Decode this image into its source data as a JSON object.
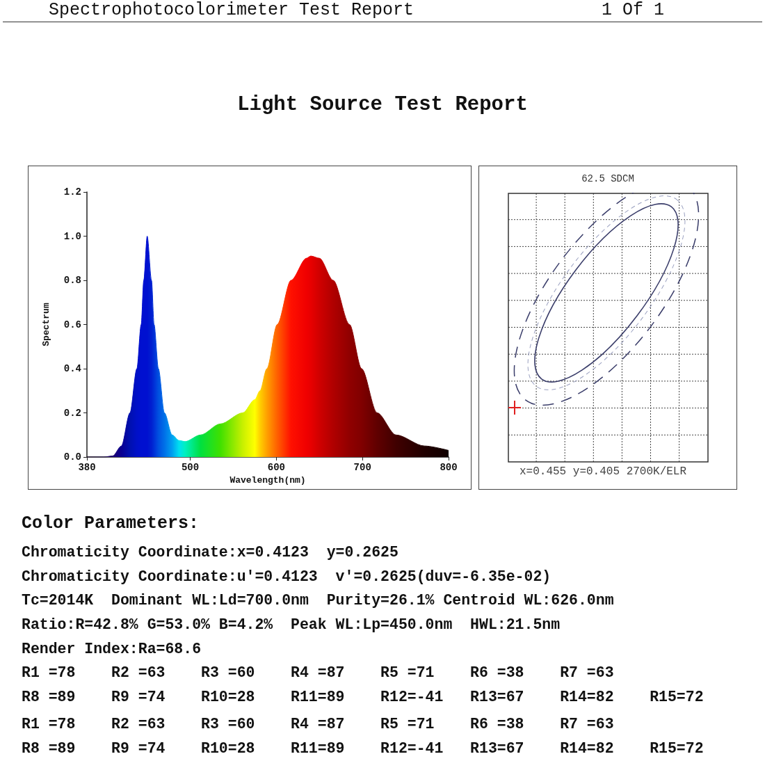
{
  "chart_data": [
    {
      "type": "other",
      "title": "Spectrophotocolorimeter Test Report",
      "subtitle": "Light Source Test Report",
      "annotations": [
        "1 Of 1"
      ]
    },
    {
      "type": "area",
      "xlabel": "Wavelength(nm)",
      "ylabel": "Spectrum",
      "x": [
        380,
        400,
        410,
        420,
        430,
        438,
        443,
        446,
        450,
        455,
        458,
        463,
        470,
        479,
        487,
        494,
        512,
        535,
        561,
        575,
        581,
        589,
        601,
        617,
        635,
        640,
        650,
        666,
        685,
        699,
        717,
        739,
        772,
        800
      ],
      "values": [
        0,
        0,
        0.005,
        0.05,
        0.2,
        0.4,
        0.6,
        0.8,
        1.0,
        0.8,
        0.6,
        0.4,
        0.2,
        0.1,
        0.075,
        0.07,
        0.1,
        0.15,
        0.2,
        0.26,
        0.3,
        0.4,
        0.6,
        0.8,
        0.9,
        0.91,
        0.9,
        0.8,
        0.6,
        0.4,
        0.2,
        0.1,
        0.05,
        0.03
      ],
      "colors": [
        "#1a0030",
        "#1a0050",
        "#1c0070",
        "#0a0090",
        "#0010b0",
        "#0010c8",
        "#0010d0",
        "#0010d0",
        "#0010d0",
        "#0020d0",
        "#0030d8",
        "#0050e0",
        "#0070e8",
        "#00a0f0",
        "#00e0f0",
        "#00f0c0",
        "#00e040",
        "#40e000",
        "#c8f000",
        "#ffff00",
        "#ffd000",
        "#ffa000",
        "#ff6000",
        "#ff1000",
        "#f00000",
        "#e80000",
        "#d00000",
        "#b00000",
        "#900000",
        "#800000",
        "#600000",
        "#400000",
        "#200000",
        "#100000"
      ],
      "xlim": [
        380,
        800
      ],
      "xticks": [
        380,
        500,
        600,
        700,
        800
      ],
      "ylim": [
        0,
        1.2
      ],
      "yticks": [
        {
          "value": 0,
          "label": "0.0"
        },
        0.2,
        0.4,
        0.6,
        0.8,
        {
          "value": 1,
          "label": "1.0"
        },
        1.2
      ]
    },
    {
      "type": "other",
      "title": "62.5 SDCM",
      "annotations": [
        "x=0.455 y=0.405 2700K/ELR"
      ]
    },
    {
      "type": "other",
      "title": "Color Parameters:",
      "annotations": [
        "Chromaticity Coordinate:x=0.4123  y=0.2625",
        "Chromaticity Coordinate:u'=0.4123  v'=0.2625(duv=-6.35e-02)",
        "Tc=2014K  Dominant WL:Ld=700.0nm  Purity=26.1% Centroid WL:626.0nm",
        "Ratio:R=42.8% G=53.0% B=4.2%  Peak WL:Lp=450.0nm  HWL:21.5nm",
        "Render Index:Ra=68.6",
        "R1 =78    R2 =63    R3 =60    R4 =87    R5 =71    R6 =38    R7 =63",
        "R8 =89    R9 =74    R10=28    R11=89    R12=-41   R13=67    R14=82    R15=72",
        "R1 =78    R2 =63    R3 =60    R4 =87    R5 =71    R6 =38    R7 =63",
        "R8 =89    R9 =74    R10=28    R11=89    R12=-41   R13=67    R14=82    R15=72"
      ]
    }
  ]
}
